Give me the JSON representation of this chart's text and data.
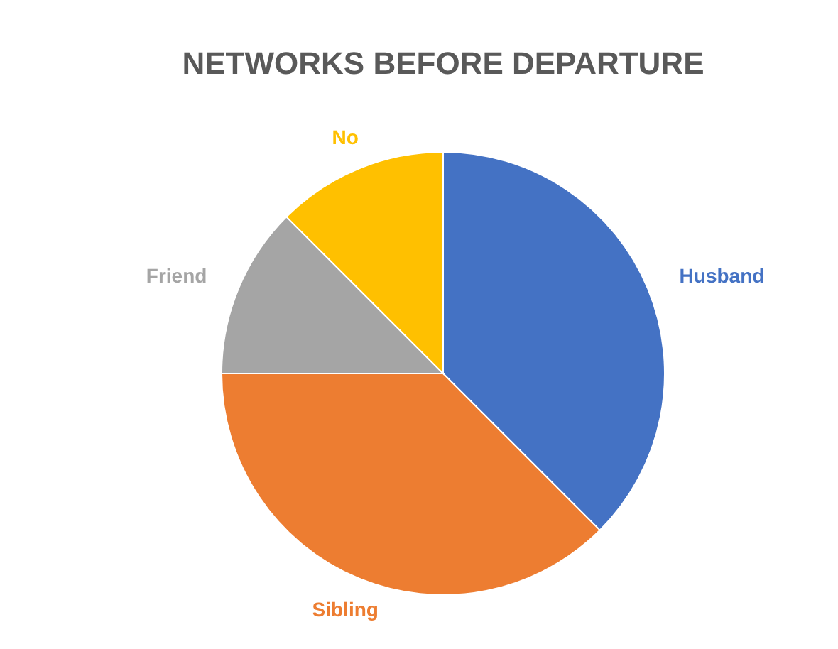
{
  "chart_data": {
    "type": "pie",
    "title": "NETWORKS BEFORE DEPARTURE",
    "categories": [
      "Husband",
      "Sibling",
      "Friend",
      "No"
    ],
    "values": [
      37.5,
      37.5,
      12.5,
      12.5
    ],
    "colors": [
      "#4472c4",
      "#ed7d31",
      "#a5a5a5",
      "#ffc000"
    ]
  }
}
